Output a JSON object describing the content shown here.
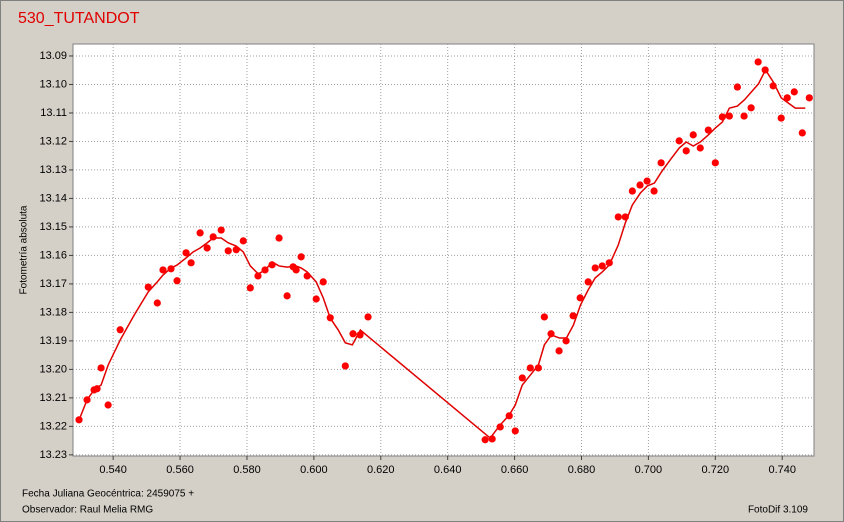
{
  "chart_data": {
    "type": "scatter",
    "title": "530_TUTANDOT",
    "ylabel": "Fotometría absoluta",
    "xlabel": "Fecha Juliana Geocéntrica: 2459075 +",
    "observer": "Observador: Raul Melia RMG",
    "software": "FotoDif 3.109",
    "xlim": [
      0.528,
      0.7495
    ],
    "ylim": [
      13.2304,
      13.0858
    ],
    "xticks": [
      {
        "value": 0.54,
        "label": "0.540"
      },
      {
        "value": 0.56,
        "label": "0.560"
      },
      {
        "value": 0.58,
        "label": "0.580"
      },
      {
        "value": 0.6,
        "label": "0.600"
      },
      {
        "value": 0.62,
        "label": "0.620"
      },
      {
        "value": 0.64,
        "label": "0.640"
      },
      {
        "value": 0.66,
        "label": "0.660"
      },
      {
        "value": 0.68,
        "label": "0.680"
      },
      {
        "value": 0.7,
        "label": "0.700"
      },
      {
        "value": 0.72,
        "label": "0.720"
      },
      {
        "value": 0.74,
        "label": "0.740"
      }
    ],
    "yticks": [
      13.09,
      {
        "value": 13.1,
        "label": "13.10"
      },
      13.11,
      13.12,
      13.13,
      13.14,
      13.15,
      13.16,
      13.17,
      13.18,
      13.19,
      {
        "value": 13.2,
        "label": "13.20"
      },
      13.21,
      13.22,
      13.23
    ],
    "grid": true,
    "series": [
      {
        "type": "scatter",
        "color": "#ff0000",
        "x": [
          0.5298,
          0.5322,
          0.5343,
          0.5352,
          0.5364,
          0.5385,
          0.5421,
          0.5505,
          0.5532,
          0.5549,
          0.5573,
          0.5591,
          0.5618,
          0.5633,
          0.566,
          0.5681,
          0.5699,
          0.5723,
          0.5744,
          0.5768,
          0.5789,
          0.581,
          0.5833,
          0.5854,
          0.5875,
          0.5896,
          0.592,
          0.5938,
          0.5947,
          0.5962,
          0.598,
          0.6007,
          0.6028,
          0.6049,
          0.6094,
          0.6117,
          0.6138,
          0.6162,
          0.6512,
          0.6533,
          0.6557,
          0.6584,
          0.6602,
          0.6623,
          0.6647,
          0.6671,
          0.6689,
          0.6709,
          0.6733,
          0.6754,
          0.6775,
          0.6796,
          0.682,
          0.6841,
          0.6862,
          0.6883,
          0.691,
          0.6931,
          0.6952,
          0.6975,
          0.6996,
          0.7017,
          0.7038,
          0.7092,
          0.7113,
          0.7134,
          0.7155,
          0.7179,
          0.72,
          0.7221,
          0.7242,
          0.7266,
          0.7286,
          0.7307,
          0.7328,
          0.7349,
          0.7373,
          0.7397,
          0.7415,
          0.7436,
          0.746,
          0.7481
        ],
        "values": [
          13.2177,
          13.2107,
          13.2072,
          13.2068,
          13.1995,
          13.2125,
          13.1861,
          13.1711,
          13.1767,
          13.1651,
          13.1647,
          13.1689,
          13.1591,
          13.1626,
          13.1521,
          13.1574,
          13.1535,
          13.1511,
          13.1584,
          13.158,
          13.1549,
          13.1714,
          13.1672,
          13.1651,
          13.1633,
          13.1539,
          13.1742,
          13.164,
          13.1651,
          13.1605,
          13.1672,
          13.1753,
          13.1693,
          13.1819,
          13.1988,
          13.1875,
          13.1879,
          13.1816,
          13.2247,
          13.2244,
          13.2202,
          13.2163,
          13.2216,
          13.203,
          13.1995,
          13.1995,
          13.1816,
          13.1875,
          13.1935,
          13.19,
          13.1812,
          13.1749,
          13.1693,
          13.1644,
          13.1637,
          13.1626,
          13.1465,
          13.1465,
          13.1374,
          13.1353,
          13.1339,
          13.1374,
          13.1275,
          13.1198,
          13.1233,
          13.1177,
          13.1223,
          13.116,
          13.1275,
          13.1114,
          13.1111,
          13.1009,
          13.1111,
          13.1082,
          13.0921,
          13.0949,
          13.1005,
          13.1118,
          13.1047,
          13.1026,
          13.117,
          13.1047
        ]
      },
      {
        "type": "line",
        "color": "#e00000",
        "x": [
          0.5298,
          0.5322,
          0.5343,
          0.5364,
          0.5385,
          0.5421,
          0.5463,
          0.5505,
          0.5532,
          0.5549,
          0.5573,
          0.5591,
          0.5618,
          0.5639,
          0.566,
          0.5681,
          0.5699,
          0.5723,
          0.5744,
          0.5768,
          0.5789,
          0.581,
          0.5834,
          0.5855,
          0.5875,
          0.5896,
          0.592,
          0.5947,
          0.5962,
          0.598,
          0.6007,
          0.6028,
          0.6049,
          0.6073,
          0.6094,
          0.6115,
          0.6139,
          0.6527,
          0.6557,
          0.6584,
          0.6602,
          0.6623,
          0.6647,
          0.6671,
          0.6689,
          0.671,
          0.6734,
          0.6755,
          0.6776,
          0.6797,
          0.682,
          0.6841,
          0.6862,
          0.6883,
          0.691,
          0.6931,
          0.6952,
          0.6976,
          0.6997,
          0.7018,
          0.7039,
          0.7065,
          0.7092,
          0.7113,
          0.7134,
          0.7155,
          0.7179,
          0.72,
          0.7221,
          0.7242,
          0.7266,
          0.7287,
          0.7308,
          0.7329,
          0.735,
          0.7373,
          0.7397,
          0.7439,
          0.7469
        ],
        "values": [
          13.2178,
          13.2107,
          13.2072,
          13.2055,
          13.1985,
          13.1897,
          13.1809,
          13.1728,
          13.1693,
          13.1669,
          13.1644,
          13.1634,
          13.1609,
          13.1588,
          13.1574,
          13.1556,
          13.1539,
          13.1539,
          13.1556,
          13.1567,
          13.1588,
          13.1637,
          13.1665,
          13.1651,
          13.1623,
          13.1637,
          13.1641,
          13.1637,
          13.1644,
          13.1658,
          13.1693,
          13.1749,
          13.182,
          13.1862,
          13.1907,
          13.1914,
          13.1862,
          13.2241,
          13.2195,
          13.216,
          13.2125,
          13.2055,
          13.202,
          13.1985,
          13.1914,
          13.1879,
          13.189,
          13.189,
          13.1844,
          13.1774,
          13.1721,
          13.1679,
          13.1658,
          13.1634,
          13.1563,
          13.1486,
          13.1423,
          13.1381,
          13.1356,
          13.1346,
          13.1307,
          13.1265,
          13.1223,
          13.1202,
          13.1216,
          13.1202,
          13.1177,
          13.1153,
          13.1132,
          13.1083,
          13.1076,
          13.1054,
          13.1026,
          13.0998,
          13.0949,
          13.0991,
          13.1047,
          13.1083,
          13.1083
        ]
      }
    ]
  }
}
